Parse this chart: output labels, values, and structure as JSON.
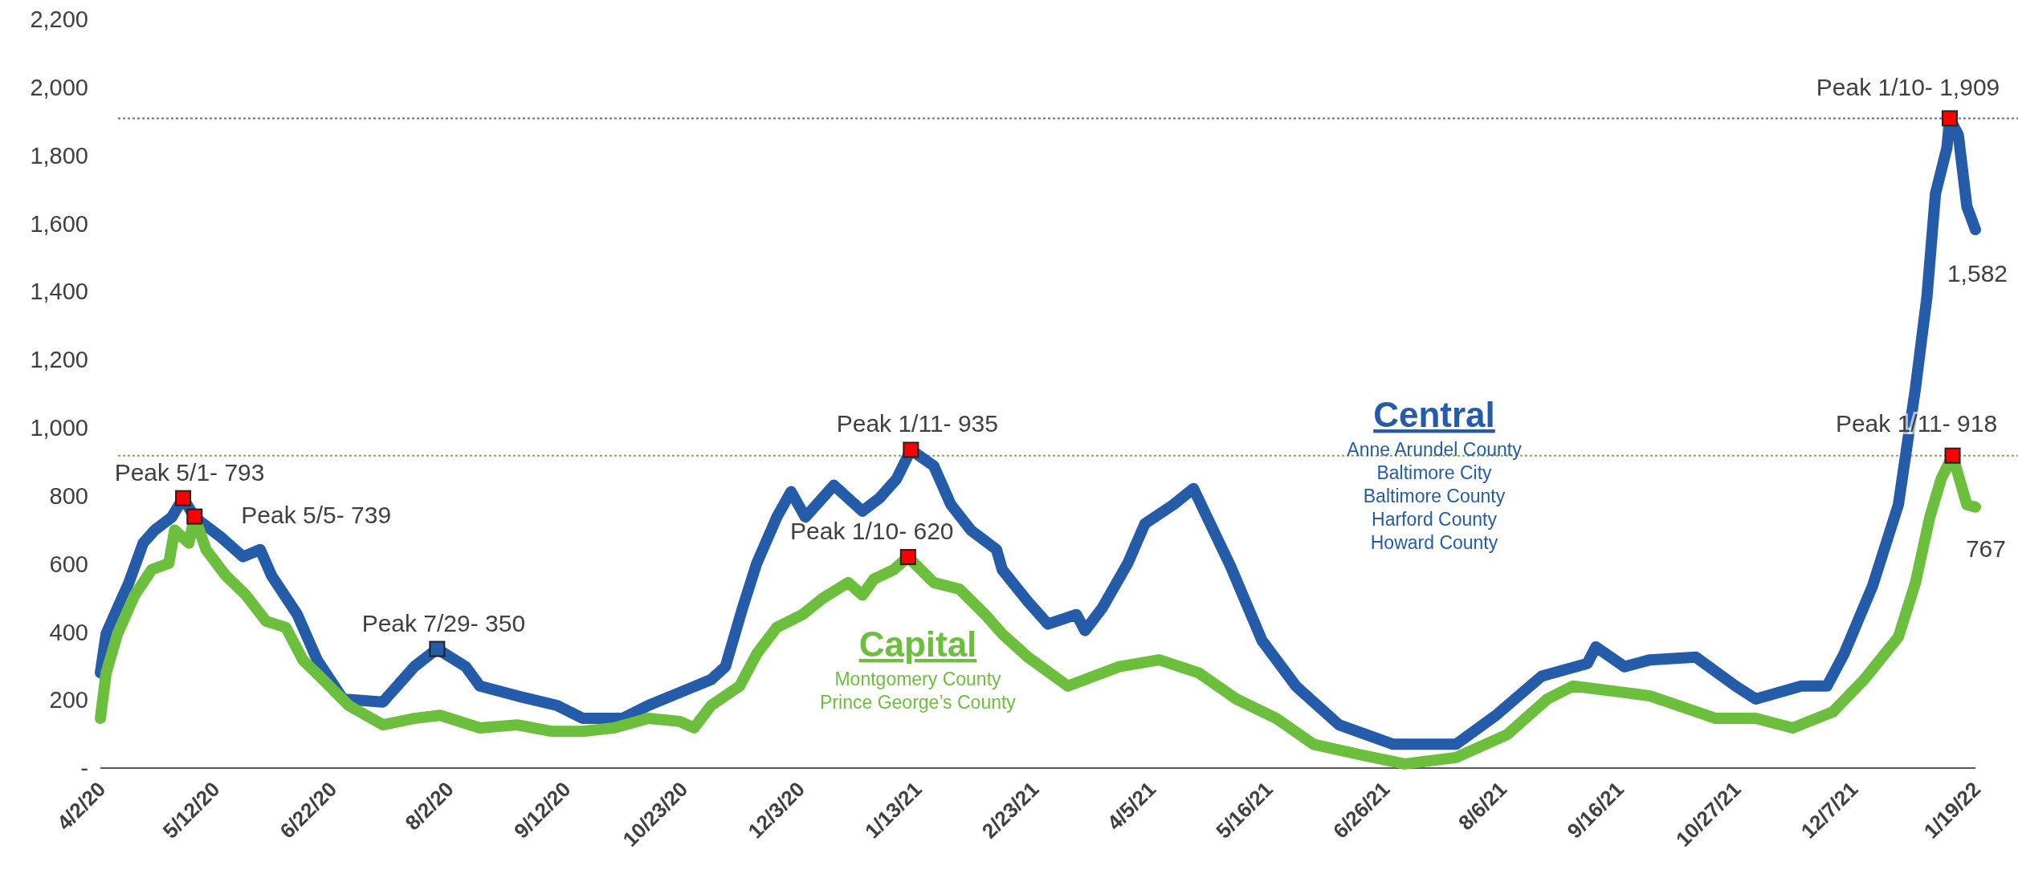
{
  "chart_data": {
    "type": "line",
    "grid": false,
    "line_style": "solid",
    "xlim": [
      "2020-04-02",
      "2022-01-19"
    ],
    "xticks": [
      {
        "value": "2020-04-02",
        "label": "4/2/20"
      },
      {
        "value": "2020-05-12",
        "label": "5/12/20"
      },
      {
        "value": "2020-06-22",
        "label": "6/22/20"
      },
      {
        "value": "2020-08-02",
        "label": "8/2/20"
      },
      {
        "value": "2020-09-12",
        "label": "9/12/20"
      },
      {
        "value": "2020-10-23",
        "label": "10/23/20"
      },
      {
        "value": "2020-12-03",
        "label": "12/3/20"
      },
      {
        "value": "2021-01-13",
        "label": "1/13/21"
      },
      {
        "value": "2021-02-23",
        "label": "2/23/21"
      },
      {
        "value": "2021-04-05",
        "label": "4/5/21"
      },
      {
        "value": "2021-05-16",
        "label": "5/16/21"
      },
      {
        "value": "2021-06-26",
        "label": "6/26/21"
      },
      {
        "value": "2021-08-06",
        "label": "8/6/21"
      },
      {
        "value": "2021-09-16",
        "label": "9/16/21"
      },
      {
        "value": "2021-10-27",
        "label": "10/27/21"
      },
      {
        "value": "2021-12-07",
        "label": "12/7/21"
      },
      {
        "value": "2022-01-19",
        "label": "1/19/22"
      }
    ],
    "ylim": [
      0,
      2200
    ],
    "yticks": [
      {
        "value": 0,
        "label": "-"
      },
      200,
      400,
      600,
      800,
      {
        "value": 1000,
        "label": "1,000"
      },
      {
        "value": 1200,
        "label": "1,200"
      },
      {
        "value": 1400,
        "label": "1,400"
      },
      {
        "value": 1600,
        "label": "1,600"
      },
      {
        "value": 1800,
        "label": "1,800"
      },
      {
        "value": 2000,
        "label": "2,000"
      },
      {
        "value": 2200,
        "label": "2,200"
      }
    ],
    "series": [
      {
        "name": "Central",
        "color": "#245caa",
        "x": [
          "2020-04-02",
          "2020-04-04",
          "2020-04-08",
          "2020-04-12",
          "2020-04-17",
          "2020-04-21",
          "2020-04-27",
          "2020-05-01",
          "2020-05-05",
          "2020-05-14",
          "2020-05-22",
          "2020-05-28",
          "2020-06-01",
          "2020-06-10",
          "2020-06-17",
          "2020-06-26",
          "2020-07-10",
          "2020-07-21",
          "2020-07-29",
          "2020-08-08",
          "2020-08-13",
          "2020-08-26",
          "2020-09-09",
          "2020-09-18",
          "2020-10-02",
          "2020-10-11",
          "2020-10-22",
          "2020-11-02",
          "2020-11-07",
          "2020-11-13",
          "2020-11-18",
          "2020-11-25",
          "2020-11-30",
          "2020-12-05",
          "2020-12-15",
          "2020-12-25",
          "2020-12-31",
          "2021-01-06",
          "2021-01-11",
          "2021-01-19",
          "2021-01-25",
          "2021-02-01",
          "2021-02-10",
          "2021-02-12",
          "2021-02-21",
          "2021-02-28",
          "2021-03-10",
          "2021-03-13",
          "2021-03-19",
          "2021-03-28",
          "2021-04-03",
          "2021-04-13",
          "2021-04-20",
          "2021-05-03",
          "2021-05-14",
          "2021-05-26",
          "2021-06-10",
          "2021-06-29",
          "2021-07-21",
          "2021-08-04",
          "2021-08-20",
          "2021-09-05",
          "2021-09-08",
          "2021-09-18",
          "2021-09-27",
          "2021-10-13",
          "2021-10-27",
          "2021-11-03",
          "2021-11-19",
          "2021-11-28",
          "2021-12-04",
          "2021-12-14",
          "2021-12-23",
          "2021-12-29",
          "2022-01-02",
          "2022-01-05",
          "2022-01-09",
          "2022-01-10",
          "2022-01-13",
          "2022-01-16",
          "2022-01-19"
        ],
        "values": [
          280,
          394,
          470,
          545,
          661,
          699,
          737,
          793,
          737,
          680,
          621,
          642,
          565,
          451,
          317,
          203,
          194,
          298,
          350,
          298,
          241,
          212,
          184,
          146,
          146,
          184,
          222,
          260,
          298,
          470,
          602,
          737,
          812,
          737,
          831,
          755,
          793,
          850,
          935,
          888,
          774,
          699,
          642,
          583,
          489,
          423,
          451,
          404,
          470,
          602,
          718,
          774,
          821,
          593,
          375,
          240,
          127,
          70,
          70,
          155,
          270,
          307,
          356,
          298,
          318,
          326,
          241,
          203,
          241,
          241,
          336,
          536,
          774,
          1117,
          1384,
          1688,
          1822,
          1909,
          1860,
          1650,
          1582
        ]
      },
      {
        "name": "Capital",
        "color": "#6cbf3c",
        "x": [
          "2020-04-02",
          "2020-04-04",
          "2020-04-08",
          "2020-04-14",
          "2020-04-20",
          "2020-04-26",
          "2020-04-28",
          "2020-05-03",
          "2020-05-05",
          "2020-05-09",
          "2020-05-16",
          "2020-05-23",
          "2020-05-30",
          "2020-06-06",
          "2020-06-12",
          "2020-06-19",
          "2020-06-28",
          "2020-07-10",
          "2020-07-21",
          "2020-07-30",
          "2020-08-13",
          "2020-08-26",
          "2020-09-07",
          "2020-09-18",
          "2020-09-29",
          "2020-10-11",
          "2020-10-22",
          "2020-10-27",
          "2020-11-02",
          "2020-11-12",
          "2020-11-18",
          "2020-11-25",
          "2020-12-04",
          "2020-12-11",
          "2020-12-20",
          "2020-12-25",
          "2020-12-29",
          "2021-01-05",
          "2021-01-10",
          "2021-01-19",
          "2021-01-28",
          "2021-02-06",
          "2021-02-12",
          "2021-02-21",
          "2021-03-07",
          "2021-03-25",
          "2021-04-08",
          "2021-04-22",
          "2021-05-05",
          "2021-05-19",
          "2021-06-01",
          "2021-06-17",
          "2021-07-03",
          "2021-07-21",
          "2021-08-08",
          "2021-08-22",
          "2021-08-31",
          "2021-09-18",
          "2021-09-27",
          "2021-10-20",
          "2021-11-03",
          "2021-11-16",
          "2021-11-30",
          "2021-12-11",
          "2021-12-23",
          "2021-12-29",
          "2022-01-03",
          "2022-01-07",
          "2022-01-11",
          "2022-01-16",
          "2022-01-19"
        ],
        "values": [
          146,
          279,
          394,
          508,
          583,
          602,
          699,
          661,
          739,
          642,
          565,
          508,
          432,
          413,
          317,
          260,
          184,
          127,
          146,
          155,
          118,
          127,
          108,
          108,
          118,
          146,
          137,
          118,
          184,
          241,
          336,
          413,
          451,
          498,
          545,
          508,
          555,
          583,
          620,
          545,
          526,
          451,
          394,
          326,
          241,
          298,
          318,
          279,
          203,
          146,
          70,
          40,
          12,
          31,
          99,
          203,
          241,
          222,
          212,
          146,
          146,
          118,
          165,
          260,
          385,
          545,
          737,
          850,
          918,
          774,
          767
        ]
      },
      {
        "type": "scatter",
        "marker": "square",
        "colors": [
          "#ff0000",
          "#ff0000",
          "#245caa",
          "#ff0000",
          "#ff0000",
          "#ff0000",
          "#ff0000"
        ],
        "x": [
          "2020-05-01",
          "2020-05-05",
          "2020-07-29",
          "2021-01-11",
          "2021-01-10",
          "2022-01-10",
          "2022-01-11"
        ],
        "values": [
          793,
          739,
          350,
          935,
          620,
          1909,
          918
        ]
      }
    ],
    "ref_lines": [
      {
        "axis": "y",
        "value": 1909,
        "color": "#4472c4",
        "line_style": "dotted"
      },
      {
        "axis": "y",
        "value": 918,
        "color": "#6cbf3c",
        "line_style": "dotted"
      }
    ],
    "annotations": [
      {
        "text": "Peak 5/1- 793",
        "x": "2020-05-01",
        "y": 793
      },
      {
        "text": "Peak 5/5- 739",
        "x": "2020-05-05",
        "y": 739
      },
      {
        "text": "Peak 7/29- 350",
        "x": "2020-07-29",
        "y": 350
      },
      {
        "text": "Peak 1/11- 935",
        "x": "2021-01-11",
        "y": 935
      },
      {
        "text": "Peak 1/10- 620",
        "x": "2021-01-10",
        "y": 620
      },
      {
        "text": "Peak 1/10- 1,909",
        "x": "2022-01-10",
        "y": 1909
      },
      {
        "text": "Peak 1/11- 918",
        "x": "2022-01-11",
        "y": 918
      },
      {
        "text": "1,582",
        "x": "2022-01-19",
        "y": 1582
      },
      {
        "text": "767",
        "x": "2022-01-19",
        "y": 767
      },
      "Anne Arundel County",
      "Baltimore City",
      "Baltimore County",
      "Harford County",
      "Howard County",
      "Montgomery County",
      "Prince George’s County"
    ]
  }
}
